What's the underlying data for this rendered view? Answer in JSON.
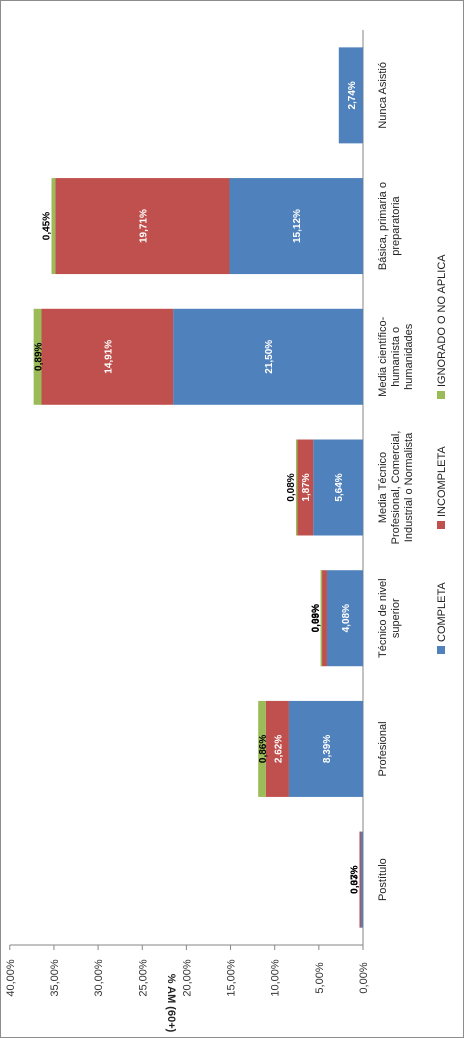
{
  "chart_data": {
    "type": "bar",
    "stacked": true,
    "orientation": "rotated-90-clockwise",
    "ylabel": "% AM (60+)",
    "ylim": [
      0,
      40
    ],
    "yticks": [
      "0,00%",
      "5,00%",
      "10,00%",
      "15,00%",
      "20,00%",
      "25,00%",
      "30,00%",
      "35,00%",
      "40,00%"
    ],
    "categories": [
      [
        "Nunca Asistió"
      ],
      [
        "Básica, primaria o",
        "preparatoria"
      ],
      [
        "Media científico-",
        "humanista o",
        "humanidades"
      ],
      [
        "Media Técnico",
        "Profesional, Comercial,",
        "Industrial o Normalista"
      ],
      [
        "Técnico de nivel",
        "superior"
      ],
      [
        "Profesional"
      ],
      [
        "Postítulo"
      ]
    ],
    "series": [
      {
        "name": "COMPLETA",
        "color": "#4f81bd",
        "values": [
          2.74,
          15.12,
          21.5,
          5.64,
          4.08,
          8.39,
          0.37
        ],
        "labels": [
          "2,74%",
          "15,12%",
          "21,50%",
          "5,64%",
          "4,08%",
          "8,39%",
          "0,37%"
        ]
      },
      {
        "name": "INCOMPLETA",
        "color": "#c0504d",
        "values": [
          0,
          19.71,
          14.91,
          1.87,
          0.69,
          2.62,
          0.03
        ],
        "labels": [
          "",
          "19,71%",
          "14,91%",
          "1,87%",
          "0,69%",
          "2,62%",
          "0,03%"
        ]
      },
      {
        "name": "IGNORADO O NO APLICA",
        "color": "#9bbb59",
        "values": [
          0,
          0.45,
          0.89,
          0.08,
          0.03,
          0.86,
          0
        ],
        "labels": [
          "",
          "0,45%",
          "0,89%",
          "0,08%",
          "0,03%",
          "0,86%",
          ""
        ]
      }
    ],
    "grid": false,
    "legend_position": "bottom"
  }
}
